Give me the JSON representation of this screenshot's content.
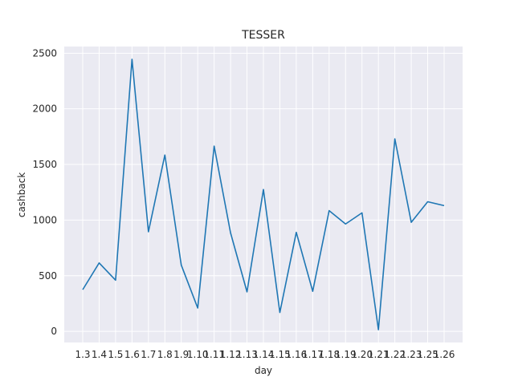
{
  "chart_data": {
    "type": "line",
    "title": "TESSER",
    "xlabel": "day",
    "ylabel": "cashback",
    "categories": [
      "1.3",
      "1.4",
      "1.5",
      "1.6",
      "1.7",
      "1.8",
      "1.9",
      "1.10",
      "1.11",
      "1.12",
      "1.13",
      "1.14",
      "1.15",
      "1.16",
      "1.17",
      "1.18",
      "1.19",
      "1.20",
      "1.21",
      "1.22",
      "1.23",
      "1.25",
      "1.26"
    ],
    "series": [
      {
        "values": [
          375,
          615,
          460,
          2445,
          895,
          1585,
          595,
          210,
          1665,
          885,
          355,
          1275,
          170,
          890,
          360,
          1085,
          965,
          1065,
          15,
          1730,
          980,
          1165,
          1130
        ],
        "color": "#1f77b4"
      }
    ],
    "ylim": [
      -100,
      2560
    ],
    "yticks": [
      0,
      500,
      1000,
      1500,
      2000,
      2500
    ],
    "grid": true,
    "background": "#eaeaf2"
  }
}
